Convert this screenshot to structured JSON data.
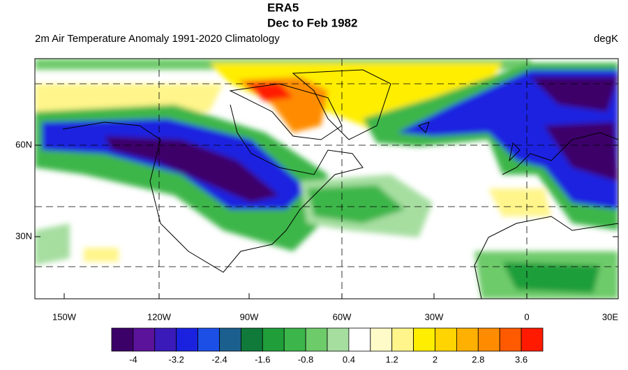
{
  "title": [
    "ERA5",
    "Dec to Feb 1982"
  ],
  "subtitle": "2m Air Temperature Anomaly  1991-2020 Climatology",
  "units": "degK",
  "map": {
    "lon_labels": [
      "150W",
      "120W",
      "90W",
      "60W",
      "30W",
      "0",
      "30E"
    ],
    "lat_labels": [
      "60N",
      "30N"
    ]
  },
  "colorbar": {
    "colors": [
      "#3c0069",
      "#5a139a",
      "#3a1ab8",
      "#1a22e0",
      "#1b4fe6",
      "#1b5f8f",
      "#0f7a3a",
      "#1f9e3a",
      "#3cb64a",
      "#6ecb6a",
      "#a6dea0",
      "#ffffff",
      "#fffbc8",
      "#fff58a",
      "#ffee00",
      "#ffd400",
      "#ffb000",
      "#ff8c00",
      "#ff5a00",
      "#ff1a00"
    ],
    "labels": [
      -4,
      -3.2,
      -2.4,
      -1.6,
      -0.8,
      0.4,
      1.2,
      2,
      2.8,
      3.6
    ]
  }
}
